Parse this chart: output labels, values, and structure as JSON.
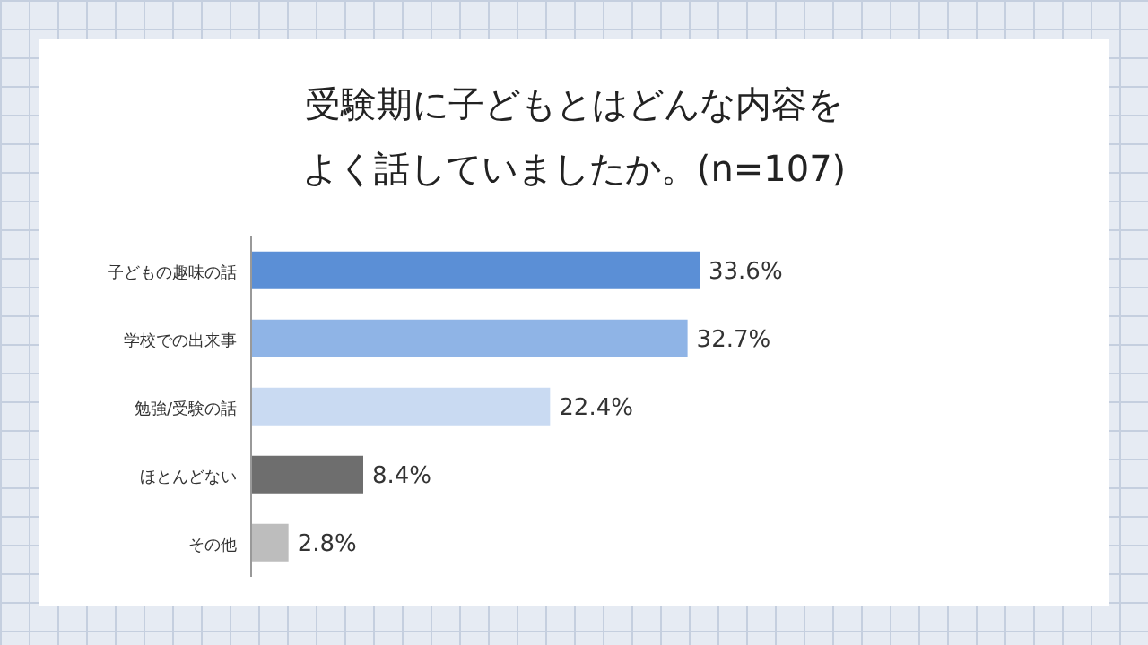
{
  "chart_data": {
    "type": "bar",
    "orientation": "horizontal",
    "title": "受験期に子どもとはどんな内容をよく話していましたか。(n=107)",
    "categories": [
      "子どもの趣味の話",
      "学校での出来事",
      "勉強/受験の話",
      "ほとんどない",
      "その他"
    ],
    "values": [
      33.6,
      32.7,
      22.4,
      8.4,
      2.8
    ],
    "colors": [
      "#5b8fd6",
      "#8fb4e6",
      "#c9daf2",
      "#6e6e6e",
      "#bdbdbd"
    ],
    "value_labels": [
      "33.6%",
      "32.7%",
      "22.4%",
      "8.4%",
      "2.8%"
    ],
    "grid": false,
    "legend": false
  }
}
